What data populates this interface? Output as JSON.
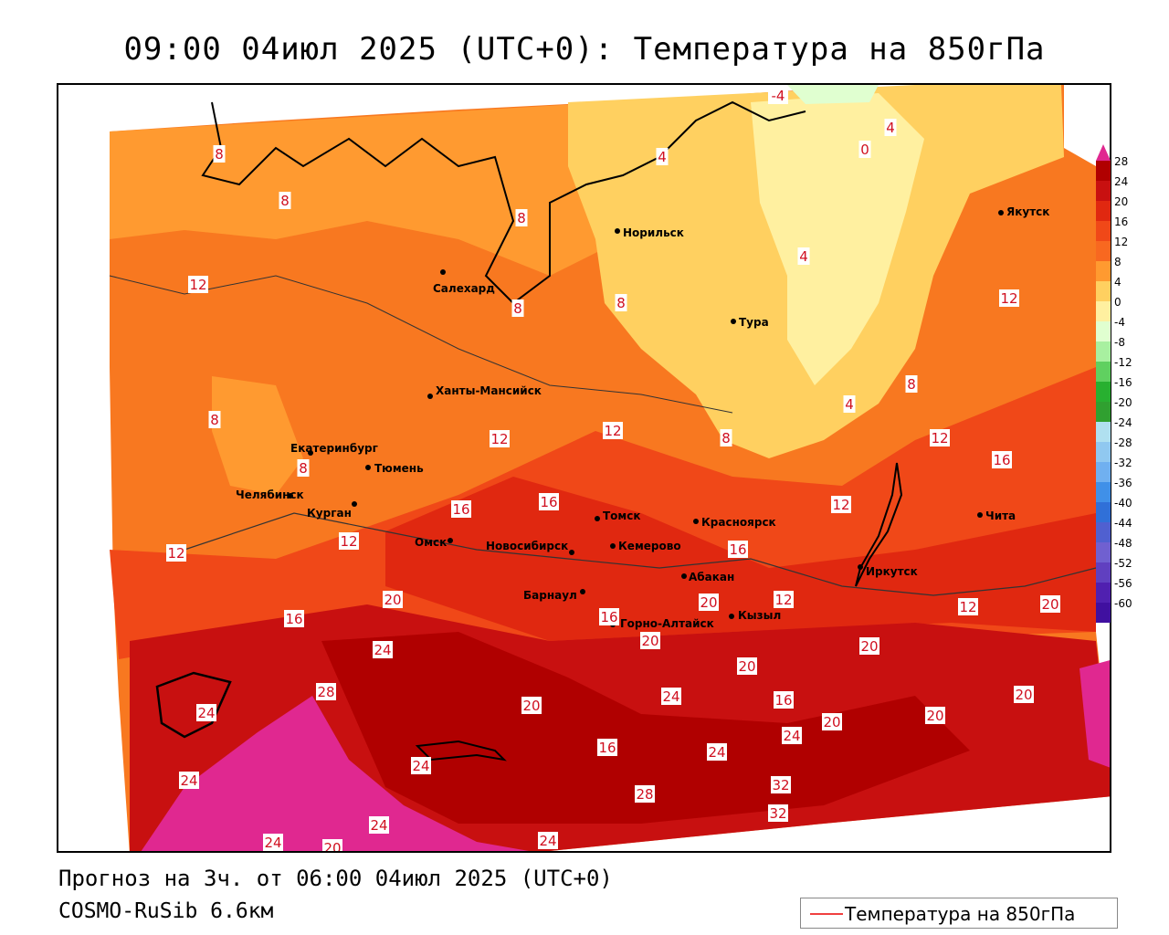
{
  "header": {
    "title": "09:00 04июл 2025 (UTC+0): Температура на 850гПа"
  },
  "footer": {
    "forecast": "Прогноз на 3ч. от 06:00 04июл 2025 (UTC+0)",
    "model": "COSMO-RuSib 6.6км"
  },
  "legend": {
    "label": "Температура на 850гПа",
    "line_color": "#f04040"
  },
  "colorbar": {
    "ticks": [
      "28",
      "24",
      "20",
      "16",
      "12",
      "8",
      "4",
      "0",
      "-4",
      "-8",
      "-12",
      "-16",
      "-20",
      "-24",
      "-28",
      "-32",
      "-36",
      "-40",
      "-44",
      "-48",
      "-52",
      "-56",
      "-60"
    ],
    "colors": [
      "#b00000",
      "#c81010",
      "#e02810",
      "#f04818",
      "#f86820",
      "#ff9a30",
      "#ffd060",
      "#fff0a0",
      "#e0ffd0",
      "#a8f0a0",
      "#60d060",
      "#28b030",
      "#30a030",
      "#b0e0f0",
      "#90c8f0",
      "#70b0f0",
      "#4090e8",
      "#3070d8",
      "#5060d0",
      "#7060d0",
      "#6040c0",
      "#5020b0",
      "#4010a0"
    ],
    "top_color": "#e02890"
  },
  "cities": [
    {
      "name": "Норильск"
    },
    {
      "name": "Якутск"
    },
    {
      "name": "Салехард"
    },
    {
      "name": "Тура"
    },
    {
      "name": "Ханты-Мансийск"
    },
    {
      "name": "Екатеринбург"
    },
    {
      "name": "Тюмень"
    },
    {
      "name": "Челябинск"
    },
    {
      "name": "Курган"
    },
    {
      "name": "Омск"
    },
    {
      "name": "Томск"
    },
    {
      "name": "Красноярск"
    },
    {
      "name": "Новосибирск"
    },
    {
      "name": "Кемерово"
    },
    {
      "name": "Абакан"
    },
    {
      "name": "Барнаул"
    },
    {
      "name": "Горно-Алтайск"
    },
    {
      "name": "Кызыл"
    },
    {
      "name": "Иркутск"
    },
    {
      "name": "Чита"
    }
  ],
  "isotherm_labels": [
    {
      "value": "-4"
    },
    {
      "value": "4"
    },
    {
      "value": "0"
    },
    {
      "value": "8"
    },
    {
      "value": "4"
    },
    {
      "value": "8"
    },
    {
      "value": "8"
    },
    {
      "value": "12"
    },
    {
      "value": "8"
    },
    {
      "value": "8"
    },
    {
      "value": "4"
    },
    {
      "value": "12"
    },
    {
      "value": "8"
    },
    {
      "value": "4"
    },
    {
      "value": "8"
    },
    {
      "value": "8"
    },
    {
      "value": "12"
    },
    {
      "value": "12"
    },
    {
      "value": "8"
    },
    {
      "value": "12"
    },
    {
      "value": "16"
    },
    {
      "value": "16"
    },
    {
      "value": "16"
    },
    {
      "value": "12"
    },
    {
      "value": "12"
    },
    {
      "value": "12"
    },
    {
      "value": "16"
    },
    {
      "value": "20"
    },
    {
      "value": "16"
    },
    {
      "value": "24"
    },
    {
      "value": "12"
    },
    {
      "value": "20"
    },
    {
      "value": "12"
    },
    {
      "value": "20"
    },
    {
      "value": "20"
    },
    {
      "value": "16"
    },
    {
      "value": "28"
    },
    {
      "value": "20"
    },
    {
      "value": "20"
    },
    {
      "value": "20"
    },
    {
      "value": "16"
    },
    {
      "value": "24"
    },
    {
      "value": "24"
    },
    {
      "value": "16"
    },
    {
      "value": "20"
    },
    {
      "value": "20"
    },
    {
      "value": "24"
    },
    {
      "value": "20"
    },
    {
      "value": "24"
    },
    {
      "value": "24"
    },
    {
      "value": "24"
    },
    {
      "value": "28"
    },
    {
      "value": "32"
    },
    {
      "value": "32"
    },
    {
      "value": "24"
    },
    {
      "value": "24"
    },
    {
      "value": "20"
    },
    {
      "value": "24"
    }
  ]
}
